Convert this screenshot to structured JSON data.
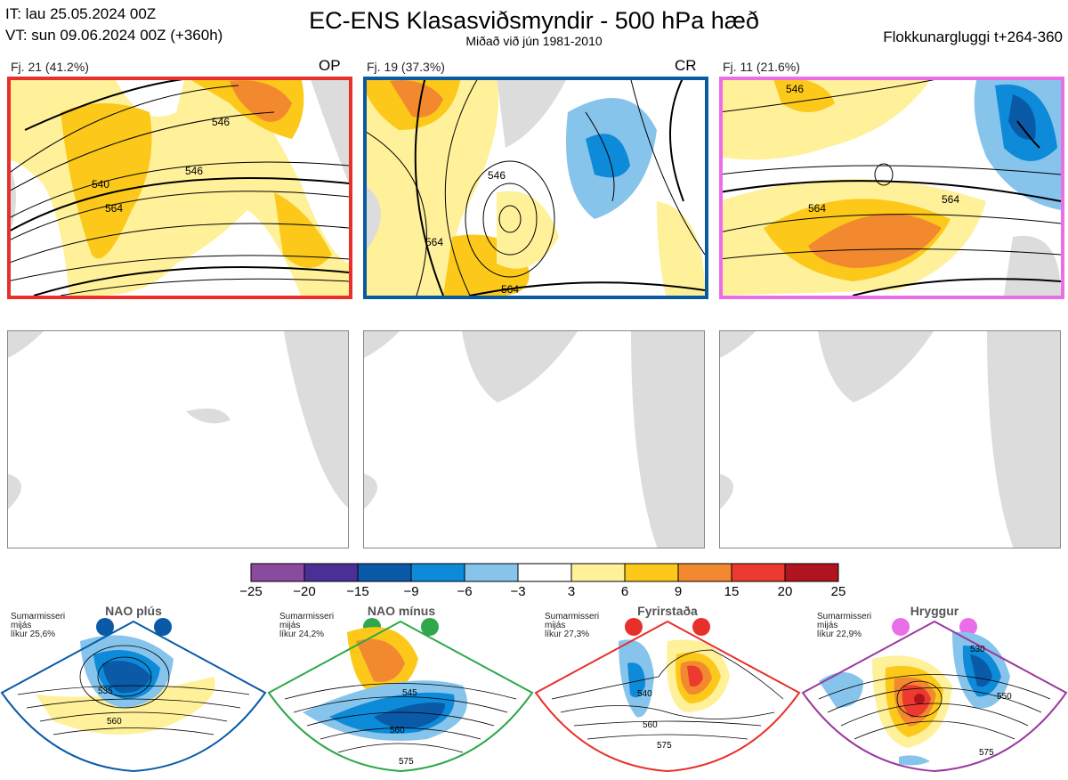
{
  "header": {
    "init": "IT: lau 25.05.2024 00Z",
    "valid": "VT: sun 09.06.2024 00Z  (+360h)",
    "title": "EC-ENS Klasasviðsmyndir - 500 hPa hæð",
    "subtitle": "Miðað við jún 1981-2010",
    "window": "Flokkunargluggi t+264-360"
  },
  "panels": [
    {
      "label": "Fj. 21 (41.2%)",
      "tag": "OP",
      "frame_color": "#e8302a"
    },
    {
      "label": "Fj. 19 (37.3%)",
      "tag": "CR",
      "frame_color": "#0a5aa0"
    },
    {
      "label": "Fj. 11 (21.6%)",
      "tag": "",
      "frame_color": "#ea6ee8"
    }
  ],
  "contour_labels": {
    "p1": [
      "546",
      "540",
      "564",
      "546"
    ],
    "p2": [
      "546",
      "564",
      "564"
    ],
    "p3": [
      "546",
      "564",
      "564"
    ]
  },
  "chart_data": {
    "type": "heatmap",
    "legend": {
      "bounds": [
        -25,
        -20,
        -15,
        -9,
        -6,
        -3,
        3,
        6,
        9,
        15,
        20,
        25
      ],
      "colors": [
        "#8a4a9e",
        "#4b2f96",
        "#0a5aa8",
        "#0d8ad8",
        "#86c4ec",
        "#ffffff",
        "#fff09a",
        "#fcc91a",
        "#f2892f",
        "#ec3a30",
        "#b0141e"
      ]
    },
    "regimes": [
      {
        "name": "NAO plús",
        "season": "Sumarmisseri",
        "note": "mijás",
        "likelihood": "líkur 25,6%",
        "color": "#0a5aa8",
        "labels": [
          "535",
          "560"
        ]
      },
      {
        "name": "NAO mínus",
        "season": "Sumarmisseri",
        "note": "mijás",
        "likelihood": "líkur 24,2%",
        "color": "#2ea84a",
        "labels": [
          "545",
          "560",
          "575"
        ]
      },
      {
        "name": "Fyrirstaða",
        "season": "Sumarmisseri",
        "note": "mijás",
        "likelihood": "líkur 27,3%",
        "color": "#e8302a",
        "labels": [
          "540",
          "560",
          "575"
        ]
      },
      {
        "name": "Hryggur",
        "season": "Sumarmisseri",
        "note": "mijás",
        "likelihood": "líkur 22,9%",
        "color": "#ea6ee8",
        "labels": [
          "530",
          "550",
          "575"
        ]
      }
    ]
  }
}
